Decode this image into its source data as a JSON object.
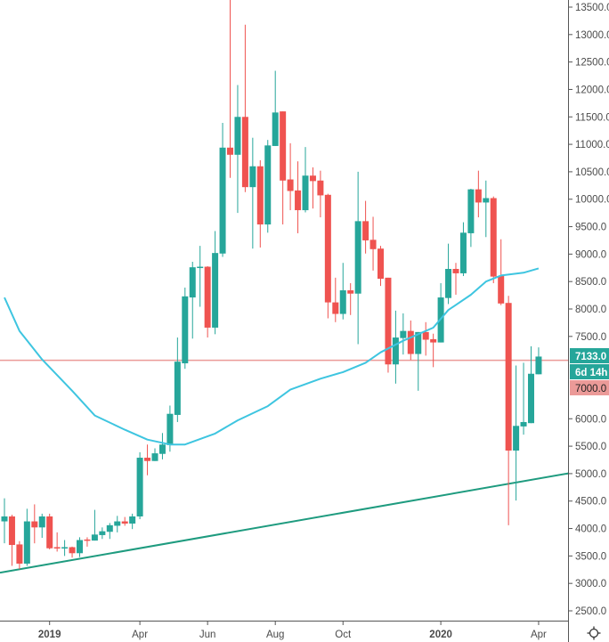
{
  "chart_data": {
    "type": "candlestick",
    "interval": "weekly",
    "colors": {
      "up": "#26a69a",
      "down": "#ef5350",
      "moving_average": "#3ec5e0",
      "trendline": "#1e9b7f",
      "horizontal_line": "#eb9a98",
      "axis_text": "#4a4a4a"
    },
    "ylim": [
      2500,
      13500
    ],
    "y_scale": "linear",
    "grid": false,
    "y_ticks": [
      13500,
      13000,
      12500,
      12000,
      11500,
      11000,
      10500,
      10000,
      9500,
      9000,
      8500,
      8000,
      7500,
      6000,
      5500,
      5000,
      4500,
      4000,
      3500,
      3000,
      2500
    ],
    "x_ticks": [
      {
        "label": "2019",
        "date": "2019-01-07"
      },
      {
        "label": "Apr",
        "date": "2019-04-01"
      },
      {
        "label": "Jun",
        "date": "2019-06-03"
      },
      {
        "label": "Aug",
        "date": "2019-08-05"
      },
      {
        "label": "Oct",
        "date": "2019-10-07"
      },
      {
        "label": "2020",
        "date": "2020-01-06"
      },
      {
        "label": "Apr",
        "date": "2020-04-06"
      }
    ],
    "candles_columns": [
      "date",
      "open",
      "high",
      "low",
      "close"
    ],
    "candles": [
      [
        "2018-11-26",
        4130,
        4550,
        3730,
        4220
      ],
      [
        "2018-12-03",
        4220,
        4250,
        3320,
        3700
      ],
      [
        "2018-12-10",
        3710,
        3770,
        3260,
        3360
      ],
      [
        "2018-12-17",
        3360,
        4360,
        3320,
        4130
      ],
      [
        "2018-12-24",
        4130,
        4440,
        3730,
        4020
      ],
      [
        "2018-12-31",
        4020,
        4270,
        3830,
        4220
      ],
      [
        "2019-01-07",
        4220,
        4270,
        3620,
        3640
      ],
      [
        "2019-01-14",
        3660,
        3930,
        3580,
        3640
      ],
      [
        "2019-01-21",
        3640,
        3790,
        3500,
        3660
      ],
      [
        "2019-01-28",
        3660,
        3670,
        3470,
        3550
      ],
      [
        "2019-02-04",
        3550,
        3840,
        3480,
        3790
      ],
      [
        "2019-02-11",
        3800,
        3840,
        3670,
        3790
      ],
      [
        "2019-02-18",
        3780,
        4340,
        3780,
        3890
      ],
      [
        "2019-02-25",
        3880,
        4020,
        3810,
        3950
      ],
      [
        "2019-03-04",
        3940,
        4100,
        3810,
        4060
      ],
      [
        "2019-03-11",
        4050,
        4230,
        3930,
        4130
      ],
      [
        "2019-03-18",
        4130,
        4210,
        4050,
        4090
      ],
      [
        "2019-03-25",
        4090,
        4270,
        3990,
        4220
      ],
      [
        "2019-04-01",
        4220,
        5390,
        4170,
        5290
      ],
      [
        "2019-04-08",
        5290,
        5530,
        4970,
        5230
      ],
      [
        "2019-04-15",
        5230,
        5460,
        5230,
        5370
      ],
      [
        "2019-04-22",
        5360,
        5740,
        5260,
        5530
      ],
      [
        "2019-04-29",
        5520,
        6240,
        5400,
        6090
      ],
      [
        "2019-05-06",
        6070,
        7480,
        5940,
        7040
      ],
      [
        "2019-05-13",
        7010,
        8390,
        6910,
        8230
      ],
      [
        "2019-05-20",
        8210,
        8860,
        7460,
        8760
      ],
      [
        "2019-05-27",
        8750,
        9150,
        8040,
        8770
      ],
      [
        "2019-06-03",
        8770,
        8780,
        7480,
        7660
      ],
      [
        "2019-06-10",
        7660,
        9420,
        7540,
        9020
      ],
      [
        "2019-06-17",
        9010,
        11390,
        8950,
        10940
      ],
      [
        "2019-06-24",
        10940,
        13880,
        10390,
        10810
      ],
      [
        "2019-07-01",
        10810,
        12080,
        9750,
        11500
      ],
      [
        "2019-07-08",
        11500,
        13180,
        10130,
        10220
      ],
      [
        "2019-07-15",
        10220,
        11120,
        9100,
        10600
      ],
      [
        "2019-07-22",
        10600,
        10710,
        9120,
        9540
      ],
      [
        "2019-07-29",
        9540,
        11080,
        9390,
        10980
      ],
      [
        "2019-08-05",
        10970,
        12340,
        10970,
        11580
      ],
      [
        "2019-08-12",
        11600,
        11600,
        9540,
        10340
      ],
      [
        "2019-08-19",
        10360,
        11020,
        9800,
        10150
      ],
      [
        "2019-08-26",
        10160,
        10690,
        9380,
        9800
      ],
      [
        "2019-09-02",
        9800,
        10950,
        9760,
        10430
      ],
      [
        "2019-09-09",
        10430,
        10580,
        9830,
        10330
      ],
      [
        "2019-09-16",
        10340,
        10520,
        9670,
        10070
      ],
      [
        "2019-09-23",
        10080,
        10100,
        7830,
        8120
      ],
      [
        "2019-09-30",
        8120,
        8570,
        7760,
        7910
      ],
      [
        "2019-10-07",
        7910,
        8840,
        7810,
        8340
      ],
      [
        "2019-10-14",
        8340,
        8470,
        7890,
        8280
      ],
      [
        "2019-10-21",
        8280,
        10500,
        7360,
        9600
      ],
      [
        "2019-10-28",
        9600,
        9970,
        9010,
        9250
      ],
      [
        "2019-11-04",
        9260,
        9680,
        8700,
        9090
      ],
      [
        "2019-11-11",
        9100,
        9150,
        8420,
        8550
      ],
      [
        "2019-11-18",
        8570,
        8570,
        6840,
        6990
      ],
      [
        "2019-11-25",
        6990,
        7970,
        6640,
        7480
      ],
      [
        "2019-12-02",
        7470,
        7920,
        7170,
        7600
      ],
      [
        "2019-12-09",
        7600,
        7790,
        7070,
        7180
      ],
      [
        "2019-12-16",
        7180,
        7580,
        6510,
        7580
      ],
      [
        "2019-12-23",
        7580,
        7760,
        7150,
        7440
      ],
      [
        "2019-12-30",
        7450,
        7550,
        6940,
        7390
      ],
      [
        "2020-01-06",
        7390,
        8470,
        7390,
        8210
      ],
      [
        "2020-01-13",
        8200,
        9190,
        8090,
        8730
      ],
      [
        "2020-01-20",
        8730,
        8840,
        8260,
        8650
      ],
      [
        "2020-01-27",
        8650,
        9580,
        8600,
        9390
      ],
      [
        "2020-02-03",
        9380,
        10190,
        9130,
        10180
      ],
      [
        "2020-02-10",
        10180,
        10520,
        9670,
        9940
      ],
      [
        "2020-02-17",
        9940,
        10340,
        9310,
        10020
      ],
      [
        "2020-02-24",
        10020,
        10050,
        8470,
        8590
      ],
      [
        "2020-03-02",
        8600,
        9270,
        8070,
        8100
      ],
      [
        "2020-03-09",
        8110,
        8240,
        4060,
        5420
      ],
      [
        "2020-03-16",
        5420,
        6970,
        4510,
        5870
      ],
      [
        "2020-03-23",
        5860,
        7020,
        5710,
        5940
      ],
      [
        "2020-03-30",
        5920,
        7320,
        5920,
        6820
      ],
      [
        "2020-04-06",
        6810,
        7300,
        6810,
        7133
      ]
    ],
    "moving_average": [
      [
        "2018-11-26",
        8210
      ],
      [
        "2018-12-10",
        7600
      ],
      [
        "2018-12-31",
        7080
      ],
      [
        "2019-01-28",
        6510
      ],
      [
        "2019-02-18",
        6060
      ],
      [
        "2019-03-18",
        5800
      ],
      [
        "2019-04-08",
        5620
      ],
      [
        "2019-04-29",
        5530
      ],
      [
        "2019-05-13",
        5530
      ],
      [
        "2019-06-10",
        5730
      ],
      [
        "2019-07-01",
        5970
      ],
      [
        "2019-07-29",
        6230
      ],
      [
        "2019-08-19",
        6530
      ],
      [
        "2019-09-16",
        6730
      ],
      [
        "2019-10-07",
        6850
      ],
      [
        "2019-10-28",
        7020
      ],
      [
        "2019-11-11",
        7210
      ],
      [
        "2019-12-02",
        7420
      ],
      [
        "2019-12-30",
        7660
      ],
      [
        "2020-01-13",
        7980
      ],
      [
        "2020-02-03",
        8260
      ],
      [
        "2020-02-17",
        8500
      ],
      [
        "2020-03-02",
        8610
      ],
      [
        "2020-03-23",
        8660
      ],
      [
        "2020-04-06",
        8740
      ]
    ],
    "trendline": [
      [
        "2018-11-26",
        3210
      ],
      [
        "2020-04-06",
        4910
      ]
    ],
    "horizontal_line": 7000,
    "last_price_label": "7133.0",
    "countdown_label": "6d 14h",
    "horizontal_line_label": "7000.0"
  },
  "settings_icon": "gear-icon"
}
